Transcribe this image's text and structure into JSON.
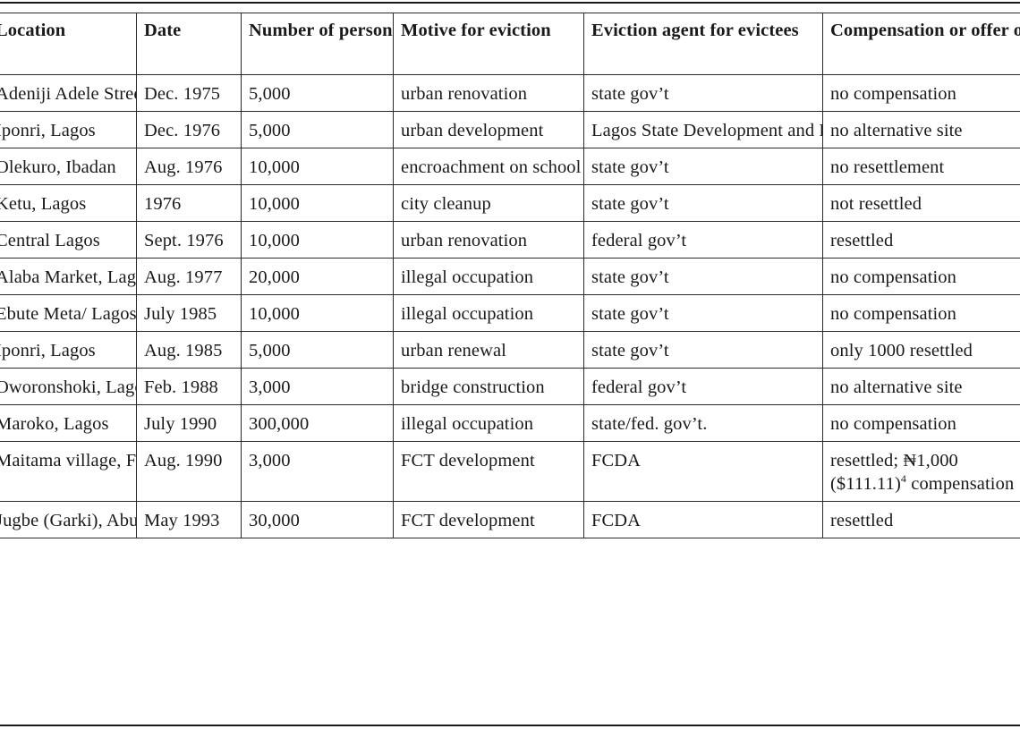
{
  "table": {
    "columns": [
      "Location",
      "Date",
      "Number of\npersons evicted",
      "Motive for eviction",
      "Eviction agent\nfor evictees",
      "Compensation or offer\nof an alternative site"
    ],
    "rows": [
      {
        "location": "Adeniji Adele\nStreet, Lagos",
        "date": "Dec. 1975",
        "persons": "5,000",
        "motive": "urban renovation",
        "agent": "state gov’t",
        "compensation": "no compensation"
      },
      {
        "location": "Iponri, Lagos",
        "date": "Dec. 1976",
        "persons": "5,000",
        "motive": "urban development",
        "agent": "Lagos State Development\nand Property Corporation,\nLagos State",
        "compensation": "no alternative site"
      },
      {
        "location": "Olekuro, Ibadan",
        "date": "Aug. 1976",
        "persons": "10,000",
        "motive": "encroachment\non school land",
        "agent": "state gov’t",
        "compensation": "no resettlement"
      },
      {
        "location": "Ketu, Lagos",
        "date": "1976",
        "persons": "10,000",
        "motive": "city cleanup",
        "agent": "state gov’t",
        "compensation": "not resettled"
      },
      {
        "location": "Central Lagos",
        "date": "Sept. 1976",
        "persons": "10,000",
        "motive": "urban renovation",
        "agent": "federal gov’t",
        "compensation": "resettled"
      },
      {
        "location": "Alaba Market,\nLagos",
        "date": "Aug. 1977",
        "persons": "20,000",
        "motive": "illegal occupation",
        "agent": "state gov’t",
        "compensation": "no compensation"
      },
      {
        "location": "Ebute Meta/\nLagos Island\nLagos",
        "date": "July 1985",
        "persons": "10,000",
        "motive": "illegal occupation",
        "agent": "state gov’t",
        "compensation": "no compensation"
      },
      {
        "location": "Iponri, Lagos",
        "date": "Aug. 1985",
        "persons": "5,000",
        "motive": "urban renewal",
        "agent": "state gov’t",
        "compensation": "only 1000 resettled"
      },
      {
        "location": "Oworonshoki,\nLagos",
        "date": "Feb. 1988",
        "persons": "3,000",
        "motive": "bridge construction",
        "agent": "federal gov’t",
        "compensation": "no alternative site"
      },
      {
        "location": "Maroko, Lagos",
        "date": "July 1990",
        "persons": "300,000",
        "motive": "illegal occupation",
        "agent": "state/fed. gov’t.",
        "compensation": "no compensation"
      },
      {
        "location": "Maitama village,\nFederal Capital\nTerritory (FCT)",
        "date": "Aug. 1990",
        "persons": "3,000",
        "motive": "FCT development",
        "agent": "FCDA",
        "compensation_line1": "resettled; ₦1,000",
        "compensation_line2_pre": "($111.11)",
        "compensation_note": "4",
        "compensation_line2_post": " compensation"
      },
      {
        "location": "Jugbe (Garki),\nAbuja",
        "date": "May 1993",
        "persons": "30,000",
        "motive": "FCT development",
        "agent": "FCDA",
        "compensation": "resettled"
      }
    ]
  }
}
